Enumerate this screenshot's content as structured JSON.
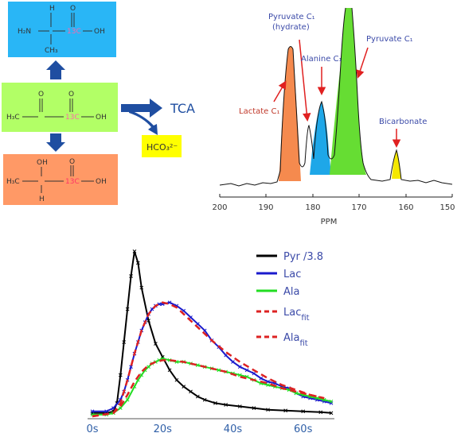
{
  "molecules": {
    "alanine": {
      "color": "#29b6f6",
      "atoms": [
        "H",
        "O",
        "H₂N",
        "13C",
        "OH",
        "CH₃"
      ]
    },
    "pyruvate": {
      "color": "#b2ff66",
      "atoms": [
        "O",
        "O",
        "H₃C",
        "13C",
        "OH"
      ]
    },
    "lactate": {
      "color": "#ff9966",
      "atoms": [
        "OH",
        "O",
        "H₃C",
        "13C",
        "OH",
        "H"
      ]
    }
  },
  "pathway": {
    "tca_label": "TCA",
    "bicarb_box_label": "HCO₃²⁻",
    "bicarb_box_color": "#ffff00",
    "arrow_color": "#1f4ea1"
  },
  "spectrum": {
    "labels": {
      "pyruvate_hydrate": [
        "Pyruvate C₁",
        "(hydrate)"
      ],
      "alanine": "Alanine C₁",
      "pyruvate": "Pyruvate C₁",
      "lactate": "Lactate C₁",
      "bicarbonate": "Bicarbonate"
    },
    "xlabel": "PPM",
    "ticks": [
      "200",
      "190",
      "180",
      "170",
      "160",
      "150"
    ],
    "fills": {
      "lactate": "#f58a4e",
      "alanine": "#1ea7e8",
      "pyruvate": "#66dd33",
      "bicarbonate": "#f5e800"
    }
  },
  "chart_data": {
    "type": "line",
    "x_tick_labels": [
      "0s",
      "20s",
      "40s",
      "60s"
    ],
    "xlim": [
      0,
      68
    ],
    "ylim": [
      0,
      1.05
    ],
    "series": [
      {
        "name": "Pyr /3.8",
        "color": "#000000",
        "style": "solid-x",
        "x": [
          0,
          4,
          6,
          7,
          8,
          9,
          10,
          11,
          12,
          13,
          14,
          16,
          18,
          20,
          22,
          24,
          26,
          28,
          30,
          32,
          35,
          38,
          42,
          46,
          50,
          55,
          60,
          65,
          68
        ],
        "y": [
          0.02,
          0.02,
          0.03,
          0.08,
          0.25,
          0.45,
          0.65,
          0.85,
          1.0,
          0.93,
          0.78,
          0.58,
          0.44,
          0.36,
          0.28,
          0.22,
          0.18,
          0.15,
          0.12,
          0.1,
          0.08,
          0.07,
          0.06,
          0.05,
          0.04,
          0.035,
          0.03,
          0.025,
          0.02
        ]
      },
      {
        "name": "Lac",
        "color": "#1a1acc",
        "style": "solid-x",
        "x": [
          0,
          4,
          6,
          8,
          9,
          10,
          11,
          12,
          13,
          14,
          15,
          16,
          17,
          18,
          19,
          20,
          22,
          24,
          26,
          28,
          30,
          32,
          34,
          36,
          38,
          40,
          42,
          44,
          46,
          48,
          50,
          52,
          54,
          56,
          58,
          60,
          62,
          64,
          66,
          68
        ],
        "y": [
          0.03,
          0.03,
          0.05,
          0.1,
          0.15,
          0.22,
          0.3,
          0.38,
          0.45,
          0.52,
          0.57,
          0.62,
          0.65,
          0.67,
          0.68,
          0.68,
          0.69,
          0.67,
          0.64,
          0.6,
          0.56,
          0.52,
          0.46,
          0.42,
          0.37,
          0.33,
          0.3,
          0.28,
          0.26,
          0.23,
          0.21,
          0.2,
          0.18,
          0.17,
          0.14,
          0.12,
          0.11,
          0.1,
          0.09,
          0.08
        ]
      },
      {
        "name": "Ala",
        "color": "#22dd22",
        "style": "solid-x",
        "x": [
          0,
          4,
          6,
          8,
          10,
          12,
          13,
          14,
          15,
          16,
          17,
          18,
          19,
          20,
          22,
          24,
          26,
          28,
          30,
          32,
          34,
          36,
          38,
          40,
          42,
          44,
          46,
          48,
          50,
          52,
          54,
          56,
          58,
          60,
          62,
          64,
          66,
          68
        ],
        "y": [
          0.01,
          0.01,
          0.02,
          0.05,
          0.1,
          0.18,
          0.22,
          0.25,
          0.28,
          0.3,
          0.32,
          0.33,
          0.34,
          0.35,
          0.34,
          0.33,
          0.33,
          0.32,
          0.31,
          0.3,
          0.29,
          0.28,
          0.27,
          0.26,
          0.25,
          0.24,
          0.22,
          0.2,
          0.19,
          0.18,
          0.17,
          0.16,
          0.14,
          0.13,
          0.12,
          0.11,
          0.1,
          0.09
        ]
      },
      {
        "name": "Lac_fit",
        "color": "#dd2222",
        "style": "dashed",
        "x": [
          0,
          6,
          8,
          10,
          12,
          14,
          16,
          18,
          20,
          22,
          24,
          26,
          28,
          30,
          34,
          38,
          42,
          46,
          50,
          54,
          58,
          62,
          66
        ],
        "y": [
          0.0,
          0.02,
          0.08,
          0.22,
          0.38,
          0.52,
          0.62,
          0.67,
          0.69,
          0.68,
          0.66,
          0.62,
          0.58,
          0.54,
          0.46,
          0.39,
          0.33,
          0.28,
          0.23,
          0.19,
          0.16,
          0.13,
          0.11
        ]
      },
      {
        "name": "Ala_fit",
        "color": "#dd2222",
        "style": "dashed",
        "x": [
          0,
          6,
          8,
          10,
          12,
          14,
          16,
          18,
          20,
          22,
          26,
          30,
          34,
          38,
          42,
          46,
          50,
          54,
          58,
          62,
          66
        ],
        "y": [
          0.0,
          0.02,
          0.06,
          0.13,
          0.21,
          0.27,
          0.31,
          0.33,
          0.34,
          0.34,
          0.33,
          0.31,
          0.29,
          0.27,
          0.24,
          0.22,
          0.2,
          0.17,
          0.15,
          0.13,
          0.11
        ]
      }
    ],
    "legend": [
      {
        "text": "Pyr /3.8",
        "sub": ""
      },
      {
        "text": "Lac",
        "sub": ""
      },
      {
        "text": "Ala",
        "sub": ""
      },
      {
        "text": "Lac",
        "sub": "fit"
      },
      {
        "text": "Ala",
        "sub": "fit"
      }
    ]
  }
}
